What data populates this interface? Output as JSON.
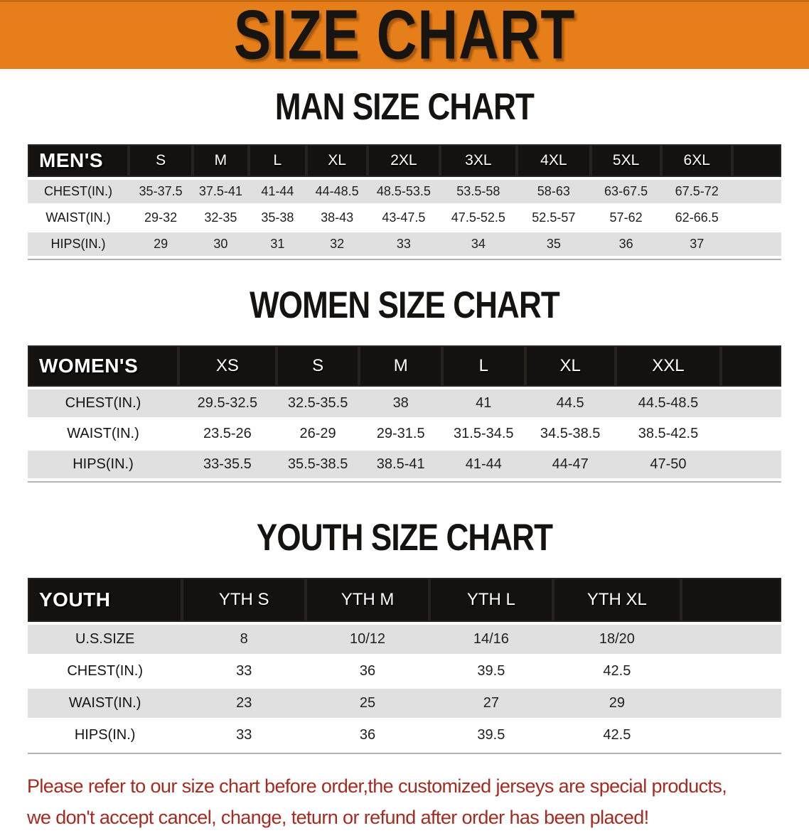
{
  "banner": {
    "title": "SIZE CHART",
    "bg_color": "#e67e1a",
    "text_color": "#181410"
  },
  "sections": [
    {
      "heading": "MAN SIZE CHART",
      "table": {
        "header_label": "MEN'S",
        "columns": [
          "S",
          "M",
          "L",
          "XL",
          "2XL",
          "3XL",
          "4XL",
          "5XL",
          "6XL"
        ],
        "rows": [
          {
            "label": "CHEST(IN.)",
            "values": [
              "35-37.5",
              "37.5-41",
              "41-44",
              "44-48.5",
              "48.5-53.5",
              "53.5-58",
              "58-63",
              "63-67.5",
              "67.5-72"
            ]
          },
          {
            "label": "WAIST(IN.)",
            "values": [
              "29-32",
              "32-35",
              "35-38",
              "38-43",
              "43-47.5",
              "47.5-52.5",
              "52.5-57",
              "57-62",
              "62-66.5"
            ]
          },
          {
            "label": "HIPS(IN.)",
            "values": [
              "29",
              "30",
              "31",
              "32",
              "33",
              "34",
              "35",
              "36",
              "37"
            ]
          }
        ]
      }
    },
    {
      "heading": "WOMEN SIZE CHART",
      "table": {
        "header_label": "WOMEN'S",
        "columns": [
          "XS",
          "S",
          "M",
          "L",
          "XL",
          "XXL"
        ],
        "rows": [
          {
            "label": "CHEST(IN.)",
            "values": [
              "29.5-32.5",
              "32.5-35.5",
              "38",
              "41",
              "44.5",
              "44.5-48.5"
            ]
          },
          {
            "label": "WAIST(IN.)",
            "values": [
              "23.5-26",
              "26-29",
              "29-31.5",
              "31.5-34.5",
              "34.5-38.5",
              "38.5-42.5"
            ]
          },
          {
            "label": "HIPS(IN.)",
            "values": [
              "33-35.5",
              "35.5-38.5",
              "38.5-41",
              "41-44",
              "44-47",
              "47-50"
            ]
          }
        ]
      }
    },
    {
      "heading": "YOUTH SIZE CHART",
      "table": {
        "header_label": "YOUTH",
        "columns": [
          "YTH S",
          "YTH M",
          "YTH L",
          "YTH XL"
        ],
        "rows": [
          {
            "label": "U.S.SIZE",
            "values": [
              "8",
              "10/12",
              "14/16",
              "18/20"
            ]
          },
          {
            "label": "CHEST(IN.)",
            "values": [
              "33",
              "36",
              "39.5",
              "42.5"
            ]
          },
          {
            "label": "WAIST(IN.)",
            "values": [
              "23",
              "25",
              "27",
              "29"
            ]
          },
          {
            "label": "HIPS(IN.)",
            "values": [
              "33",
              "36",
              "39.5",
              "42.5"
            ]
          }
        ]
      }
    }
  ],
  "footer": {
    "line1": "Please refer to our size chart before order,the customized jerseys are special products,",
    "line2": "we don't accept cancel, change, teturn or refund after order has been placed!",
    "text_color": "#a52a20"
  }
}
